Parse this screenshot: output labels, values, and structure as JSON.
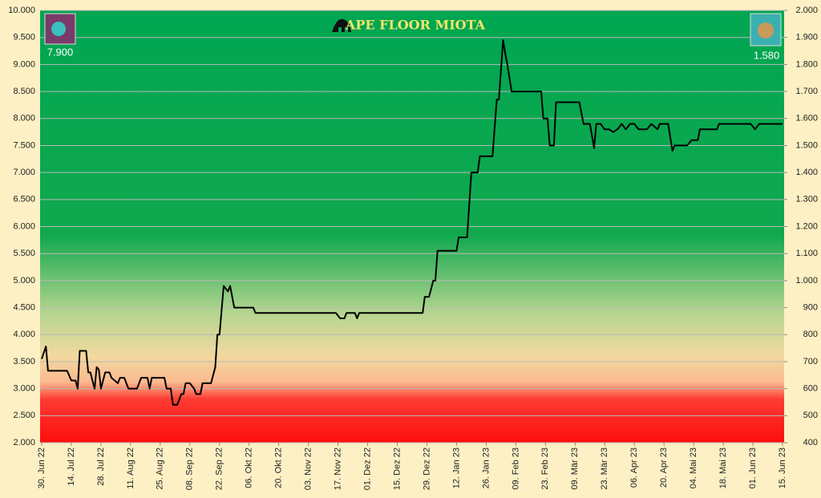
{
  "chart_data": {
    "type": "line",
    "title": "APE FLOOR MIOTA",
    "annotations": [
      "7.900",
      "1.580"
    ],
    "x": [
      "2022-06-30",
      "2022-07-02",
      "2022-07-03",
      "2022-07-12",
      "2022-07-14",
      "2022-07-16",
      "2022-07-17",
      "2022-07-18",
      "2022-07-21",
      "2022-07-22",
      "2022-07-23",
      "2022-07-25",
      "2022-07-26",
      "2022-07-27",
      "2022-07-28",
      "2022-07-30",
      "2022-08-01",
      "2022-08-02",
      "2022-08-05",
      "2022-08-06",
      "2022-08-08",
      "2022-08-10",
      "2022-08-14",
      "2022-08-16",
      "2022-08-19",
      "2022-08-20",
      "2022-08-21",
      "2022-08-27",
      "2022-08-28",
      "2022-08-30",
      "2022-08-31",
      "2022-09-02",
      "2022-09-04",
      "2022-09-05",
      "2022-09-06",
      "2022-09-08",
      "2022-09-10",
      "2022-09-11",
      "2022-09-13",
      "2022-09-14",
      "2022-09-18",
      "2022-09-20",
      "2022-09-21",
      "2022-09-22",
      "2022-09-24",
      "2022-09-26",
      "2022-09-27",
      "2022-09-29",
      "2022-10-08",
      "2022-10-09",
      "2022-11-16",
      "2022-11-18",
      "2022-11-20",
      "2022-11-21",
      "2022-11-25",
      "2022-11-26",
      "2022-11-27",
      "2022-12-27",
      "2022-12-28",
      "2022-12-30",
      "2023-01-01",
      "2023-01-02",
      "2023-01-03",
      "2023-01-12",
      "2023-01-13",
      "2023-01-17",
      "2023-01-19",
      "2023-01-22",
      "2023-01-23",
      "2023-01-29",
      "2023-01-31",
      "2023-02-01",
      "2023-02-03",
      "2023-02-04",
      "2023-02-05",
      "2023-02-07",
      "2023-02-21",
      "2023-02-22",
      "2023-02-24",
      "2023-02-25",
      "2023-02-27",
      "2023-02-28",
      "2023-03-11",
      "2023-03-12",
      "2023-03-13",
      "2023-03-16",
      "2023-03-18",
      "2023-03-19",
      "2023-03-21",
      "2023-03-23",
      "2023-03-25",
      "2023-03-27",
      "2023-03-29",
      "2023-03-31",
      "2023-04-02",
      "2023-04-04",
      "2023-04-06",
      "2023-04-08",
      "2023-04-12",
      "2023-04-14",
      "2023-04-17",
      "2023-04-18",
      "2023-04-22",
      "2023-04-24",
      "2023-04-25",
      "2023-05-01",
      "2023-05-03",
      "2023-05-06",
      "2023-05-07",
      "2023-05-15",
      "2023-05-16",
      "2023-05-31",
      "2023-06-02",
      "2023-06-04",
      "2023-06-15"
    ],
    "series": [
      {
        "color": "#000000",
        "values": [
          3550,
          3780,
          3330,
          3330,
          3150,
          3150,
          3000,
          3700,
          3700,
          3300,
          3300,
          3000,
          3400,
          3350,
          3000,
          3300,
          3300,
          3200,
          3100,
          3200,
          3200,
          3000,
          3000,
          3200,
          3200,
          3000,
          3200,
          3200,
          3000,
          3000,
          2700,
          2700,
          2900,
          2900,
          3100,
          3100,
          3000,
          2900,
          2900,
          3100,
          3100,
          3400,
          4000,
          4000,
          4900,
          4800,
          4900,
          4500,
          4500,
          4400,
          4400,
          4300,
          4300,
          4400,
          4400,
          4300,
          4400,
          4400,
          4700,
          4700,
          5000,
          5000,
          5550,
          5550,
          5800,
          5800,
          7000,
          7000,
          7300,
          7300,
          8350,
          8350,
          9450,
          9200,
          9000,
          8500,
          8500,
          8000,
          8000,
          7500,
          7500,
          8300,
          8300,
          8100,
          7900,
          7900,
          7450,
          7900,
          7900,
          7800,
          7800,
          7750,
          7800,
          7900,
          7800,
          7900,
          7900,
          7800,
          7800,
          7900,
          7800,
          7900,
          7900,
          7400,
          7500,
          7500,
          7600,
          7600,
          7800,
          7800,
          7900,
          7900,
          7800,
          7900,
          7900
        ]
      }
    ],
    "xlim": [
      "2022-06-30",
      "2023-06-15"
    ],
    "xticks": [
      {
        "value": "2022-06-30",
        "label": "30. Jun 22"
      },
      {
        "value": "2022-07-14",
        "label": "14. Jul 22"
      },
      {
        "value": "2022-07-28",
        "label": "28. Jul 22"
      },
      {
        "value": "2022-08-11",
        "label": "11. Aug 22"
      },
      {
        "value": "2022-08-25",
        "label": "25. Aug 22"
      },
      {
        "value": "2022-09-08",
        "label": "08. Sep 22"
      },
      {
        "value": "2022-09-22",
        "label": "22. Sep 22"
      },
      {
        "value": "2022-10-06",
        "label": "06. Okt 22"
      },
      {
        "value": "2022-10-20",
        "label": "20. Okt 22"
      },
      {
        "value": "2022-11-03",
        "label": "03. Nov 22"
      },
      {
        "value": "2022-11-17",
        "label": "17. Nov 22"
      },
      {
        "value": "2022-12-01",
        "label": "01. Dez 22"
      },
      {
        "value": "2022-12-15",
        "label": "15. Dez 22"
      },
      {
        "value": "2022-12-29",
        "label": "29. Dez 22"
      },
      {
        "value": "2023-01-12",
        "label": "12. Jan 23"
      },
      {
        "value": "2023-01-26",
        "label": "26. Jan 23"
      },
      {
        "value": "2023-02-09",
        "label": "09. Feb 23"
      },
      {
        "value": "2023-02-23",
        "label": "23. Feb 23"
      },
      {
        "value": "2023-03-09",
        "label": "09. Mär 23"
      },
      {
        "value": "2023-03-23",
        "label": "23. Mär 23"
      },
      {
        "value": "2023-04-06",
        "label": "06. Apr 23"
      },
      {
        "value": "2023-04-20",
        "label": "20. Apr 23"
      },
      {
        "value": "2023-05-04",
        "label": "04. Mai 23"
      },
      {
        "value": "2023-05-18",
        "label": "18. Mai 23"
      },
      {
        "value": "2023-06-01",
        "label": "01. Jun 23"
      },
      {
        "value": "2023-06-15",
        "label": "15. Jun 23"
      }
    ],
    "ylim": [
      2000,
      10000
    ],
    "yticks": [
      {
        "value": 2000,
        "label": "2.000"
      },
      {
        "value": 2500,
        "label": "2.500"
      },
      {
        "value": 3000,
        "label": "3.000"
      },
      {
        "value": 3500,
        "label": "3.500"
      },
      {
        "value": 4000,
        "label": "4.000"
      },
      {
        "value": 4500,
        "label": "4.500"
      },
      {
        "value": 5000,
        "label": "5.000"
      },
      {
        "value": 5500,
        "label": "5.500"
      },
      {
        "value": 6000,
        "label": "6.000"
      },
      {
        "value": 6500,
        "label": "6.500"
      },
      {
        "value": 7000,
        "label": "7.000"
      },
      {
        "value": 7500,
        "label": "7.500"
      },
      {
        "value": 8000,
        "label": "8.000"
      },
      {
        "value": 8500,
        "label": "8.500"
      },
      {
        "value": 9000,
        "label": "9.000"
      },
      {
        "value": 9500,
        "label": "9.500"
      },
      {
        "value": 10000,
        "label": "10.000"
      }
    ],
    "y2lim": [
      400,
      2000
    ],
    "y2ticks": [
      400,
      500,
      600,
      700,
      800,
      900,
      {
        "value": 1000,
        "label": "1.000"
      },
      {
        "value": 1100,
        "label": "1.100"
      },
      {
        "value": 1200,
        "label": "1.200"
      },
      {
        "value": 1300,
        "label": "1.300"
      },
      {
        "value": 1400,
        "label": "1.400"
      },
      {
        "value": 1500,
        "label": "1.500"
      },
      {
        "value": 1600,
        "label": "1.600"
      },
      {
        "value": 1700,
        "label": "1.700"
      },
      {
        "value": 1800,
        "label": "1.800"
      },
      {
        "value": 1900,
        "label": "1.900"
      },
      {
        "value": 2000,
        "label": "2.000"
      }
    ],
    "grid": true
  }
}
